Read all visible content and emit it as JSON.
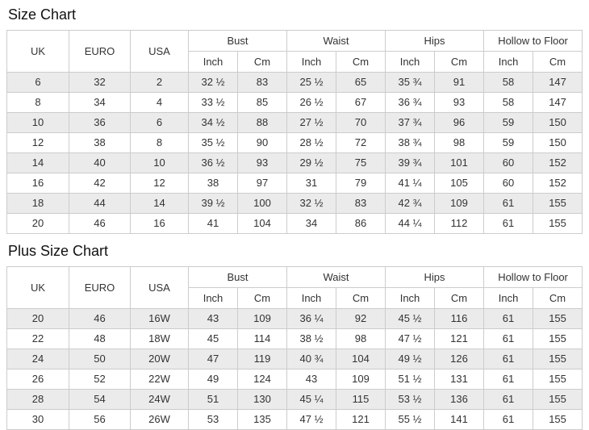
{
  "colors": {
    "row_stripe": "#ebebeb",
    "table_border": "#cccccc",
    "text": "#333333",
    "title_text": "#111111",
    "background": "#ffffff"
  },
  "chart_data": [
    {
      "type": "table",
      "title": "Size Chart",
      "simple_columns": [
        "UK",
        "EURO",
        "USA"
      ],
      "group_columns": [
        "Bust",
        "Waist",
        "Hips",
        "Hollow to Floor"
      ],
      "unit_columns": [
        "Inch",
        "Cm"
      ],
      "rows": [
        [
          "6",
          "32",
          "2",
          "32 ½",
          "83",
          "25 ½",
          "65",
          "35 ¾",
          "91",
          "58",
          "147"
        ],
        [
          "8",
          "34",
          "4",
          "33 ½",
          "85",
          "26 ½",
          "67",
          "36 ¾",
          "93",
          "58",
          "147"
        ],
        [
          "10",
          "36",
          "6",
          "34 ½",
          "88",
          "27 ½",
          "70",
          "37 ¾",
          "96",
          "59",
          "150"
        ],
        [
          "12",
          "38",
          "8",
          "35 ½",
          "90",
          "28 ½",
          "72",
          "38 ¾",
          "98",
          "59",
          "150"
        ],
        [
          "14",
          "40",
          "10",
          "36 ½",
          "93",
          "29 ½",
          "75",
          "39 ¾",
          "101",
          "60",
          "152"
        ],
        [
          "16",
          "42",
          "12",
          "38",
          "97",
          "31",
          "79",
          "41 ¼",
          "105",
          "60",
          "152"
        ],
        [
          "18",
          "44",
          "14",
          "39 ½",
          "100",
          "32 ½",
          "83",
          "42 ¾",
          "109",
          "61",
          "155"
        ],
        [
          "20",
          "46",
          "16",
          "41",
          "104",
          "34",
          "86",
          "44 ¼",
          "112",
          "61",
          "155"
        ]
      ]
    },
    {
      "type": "table",
      "title": "Plus Size Chart",
      "simple_columns": [
        "UK",
        "EURO",
        "USA"
      ],
      "group_columns": [
        "Bust",
        "Waist",
        "Hips",
        "Hollow to Floor"
      ],
      "unit_columns": [
        "Inch",
        "Cm"
      ],
      "rows": [
        [
          "20",
          "46",
          "16W",
          "43",
          "109",
          "36 ¼",
          "92",
          "45 ½",
          "116",
          "61",
          "155"
        ],
        [
          "22",
          "48",
          "18W",
          "45",
          "114",
          "38 ½",
          "98",
          "47 ½",
          "121",
          "61",
          "155"
        ],
        [
          "24",
          "50",
          "20W",
          "47",
          "119",
          "40 ¾",
          "104",
          "49 ½",
          "126",
          "61",
          "155"
        ],
        [
          "26",
          "52",
          "22W",
          "49",
          "124",
          "43",
          "109",
          "51 ½",
          "131",
          "61",
          "155"
        ],
        [
          "28",
          "54",
          "24W",
          "51",
          "130",
          "45 ¼",
          "115",
          "53 ½",
          "136",
          "61",
          "155"
        ],
        [
          "30",
          "56",
          "26W",
          "53",
          "135",
          "47 ½",
          "121",
          "55 ½",
          "141",
          "61",
          "155"
        ]
      ]
    }
  ]
}
